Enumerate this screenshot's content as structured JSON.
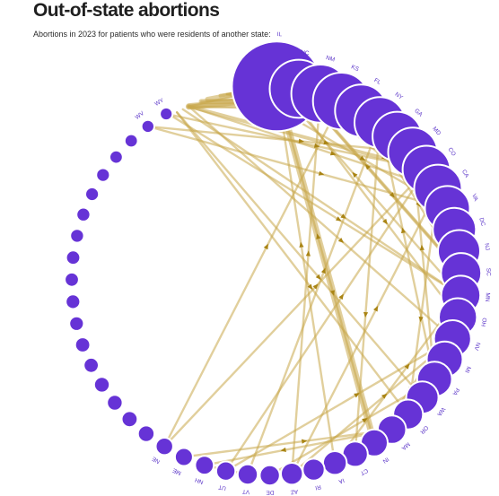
{
  "title": "Out-of-state abortions",
  "subtitle": "Abortions in 2023 for patients who were residents of another state:",
  "colors": {
    "node": "#6633d6",
    "link": "#c9a84a",
    "arrow": "#a98414",
    "label": "#5b35c8"
  },
  "states": [
    {
      "id": "IL",
      "size": 100
    },
    {
      "id": "NC",
      "size": 42
    },
    {
      "id": "NM",
      "size": 42
    },
    {
      "id": "KS",
      "size": 40
    },
    {
      "id": "FL",
      "size": 34
    },
    {
      "id": "NY",
      "size": 32
    },
    {
      "id": "GA",
      "size": 30
    },
    {
      "id": "MD",
      "size": 30
    },
    {
      "id": "CO",
      "size": 28
    },
    {
      "id": "CA",
      "size": 28
    },
    {
      "id": "VA",
      "size": 25
    },
    {
      "id": "DC",
      "size": 23
    },
    {
      "id": "NJ",
      "size": 22
    },
    {
      "id": "SC",
      "size": 20
    },
    {
      "id": "MN",
      "size": 19
    },
    {
      "id": "OH",
      "size": 18
    },
    {
      "id": "NV",
      "size": 17
    },
    {
      "id": "MI",
      "size": 16
    },
    {
      "id": "PA",
      "size": 15
    },
    {
      "id": "WA",
      "size": 13
    },
    {
      "id": "OR",
      "size": 11
    },
    {
      "id": "MA",
      "size": 10
    },
    {
      "id": "IN",
      "size": 9
    },
    {
      "id": "CT",
      "size": 8
    },
    {
      "id": "IA",
      "size": 7
    },
    {
      "id": "RI",
      "size": 6
    },
    {
      "id": "AZ",
      "size": 6
    },
    {
      "id": "DE",
      "size": 5
    },
    {
      "id": "VT",
      "size": 5
    },
    {
      "id": "UT",
      "size": 4.6
    },
    {
      "id": "NH",
      "size": 4.3
    },
    {
      "id": "ME",
      "size": 4
    },
    {
      "id": "NE",
      "size": 3.8
    },
    {
      "id": "",
      "size": 3.4
    },
    {
      "id": "",
      "size": 3.2
    },
    {
      "id": "",
      "size": 3
    },
    {
      "id": "",
      "size": 3
    },
    {
      "id": "",
      "size": 2.8
    },
    {
      "id": "",
      "size": 2.8
    },
    {
      "id": "",
      "size": 2.6
    },
    {
      "id": "",
      "size": 2.6
    },
    {
      "id": "",
      "size": 2.5
    },
    {
      "id": "",
      "size": 2.5
    },
    {
      "id": "",
      "size": 2.4
    },
    {
      "id": "",
      "size": 2.4
    },
    {
      "id": "",
      "size": 2.3
    },
    {
      "id": "",
      "size": 2.3
    },
    {
      "id": "",
      "size": 2.2
    },
    {
      "id": "",
      "size": 2.2
    },
    {
      "id": "WV",
      "size": 2.1
    },
    {
      "id": "WY",
      "size": 2
    }
  ],
  "flows": [
    [
      "MO",
      "IL",
      5
    ],
    [
      "IN",
      "IL",
      4
    ],
    [
      "KY",
      "IL",
      3
    ],
    [
      "WI",
      "IL",
      3
    ],
    [
      "TX",
      "KS",
      3
    ],
    [
      "OK",
      "KS",
      3
    ],
    [
      "TX",
      "NM",
      4
    ],
    [
      "OK",
      "NM",
      1
    ],
    [
      "TN",
      "NC",
      3
    ],
    [
      "SC",
      "NC",
      2
    ],
    [
      "FL",
      "NC",
      1
    ],
    [
      "TX",
      "CO",
      2
    ],
    [
      "GA",
      "NC",
      2
    ],
    [
      "MO",
      "KS",
      2
    ],
    [
      "AL",
      "GA",
      1
    ],
    [
      "MS",
      "GA",
      1
    ],
    [
      "TN",
      "GA",
      1
    ],
    [
      "LA",
      "FL",
      1
    ],
    [
      "AL",
      "FL",
      1
    ],
    [
      "TN",
      "VA",
      1
    ],
    [
      "WV",
      "VA",
      1
    ],
    [
      "WV",
      "MD",
      1
    ],
    [
      "NJ",
      "NY",
      1
    ],
    [
      "PA",
      "NY",
      1
    ],
    [
      "VA",
      "DC",
      1
    ],
    [
      "MD",
      "DC",
      1
    ],
    [
      "PA",
      "NJ",
      1
    ],
    [
      "NY",
      "NJ",
      1
    ],
    [
      "TX",
      "CA",
      1
    ],
    [
      "AZ",
      "CA",
      1
    ],
    [
      "ID",
      "WA",
      1
    ],
    [
      "ID",
      "OR",
      1
    ],
    [
      "SD",
      "MN",
      1
    ],
    [
      "ND",
      "MN",
      1
    ],
    [
      "IA",
      "MN",
      1
    ],
    [
      "IA",
      "IL",
      1
    ],
    [
      "KY",
      "OH",
      1
    ],
    [
      "IN",
      "MI",
      1
    ],
    [
      "OH",
      "MI",
      1
    ],
    [
      "OH",
      "PA",
      1
    ],
    [
      "DE",
      "PA",
      1
    ],
    [
      "TX",
      "NV",
      1
    ],
    [
      "AZ",
      "NV",
      1
    ],
    [
      "UT",
      "NV",
      1
    ],
    [
      "UT",
      "CO",
      1
    ],
    [
      "WY",
      "CO",
      1
    ],
    [
      "NE",
      "CO",
      1
    ],
    [
      "NE",
      "KS",
      1
    ],
    [
      "GA",
      "SC",
      1
    ],
    [
      "NC",
      "SC",
      1
    ],
    [
      "FL",
      "GA",
      1
    ],
    [
      "AR",
      "IL",
      2
    ],
    [
      "LA",
      "IL",
      1
    ],
    [
      "MS",
      "IL",
      1
    ],
    [
      "TN",
      "IL",
      1
    ],
    [
      "AL",
      "IL",
      1
    ],
    [
      "TX",
      "IL",
      1
    ],
    [
      "FL",
      "NY",
      1
    ],
    [
      "TX",
      "FL",
      1
    ],
    [
      "GA",
      "FL",
      1
    ],
    [
      "CA",
      "NV",
      1
    ],
    [
      "NY",
      "CT",
      1
    ],
    [
      "MA",
      "NH",
      1
    ],
    [
      "RI",
      "MA",
      1
    ],
    [
      "CT",
      "MA",
      1
    ],
    [
      "VT",
      "NY",
      1
    ],
    [
      "ME",
      "MA",
      1
    ],
    [
      "NH",
      "VT",
      1
    ],
    [
      "DC",
      "VA",
      1
    ],
    [
      "MD",
      "VA",
      1
    ],
    [
      "AZ",
      "NM",
      1
    ],
    [
      "CO",
      "NM",
      1
    ],
    [
      "KS",
      "CO",
      1
    ],
    [
      "IL",
      "IN",
      1
    ],
    [
      "MI",
      "OH",
      1
    ],
    [
      "CA",
      "OR",
      1
    ],
    [
      "OR",
      "WA",
      1
    ],
    [
      "WA",
      "OR",
      1
    ],
    [
      "MN",
      "IL",
      1
    ],
    [
      "NC",
      "VA",
      1
    ],
    [
      "VA",
      "MD",
      1
    ],
    [
      "DC",
      "MD",
      1
    ],
    [
      "PA",
      "MD",
      1
    ],
    [
      "NJ",
      "PA",
      1
    ],
    [
      "CO",
      "KS",
      1
    ],
    [
      "NM",
      "CO",
      1
    ],
    [
      "FL",
      "SC",
      1
    ],
    [
      "SC",
      "GA",
      1
    ],
    [
      "OH",
      "IN",
      1
    ],
    [
      "MI",
      "IN",
      1
    ]
  ]
}
